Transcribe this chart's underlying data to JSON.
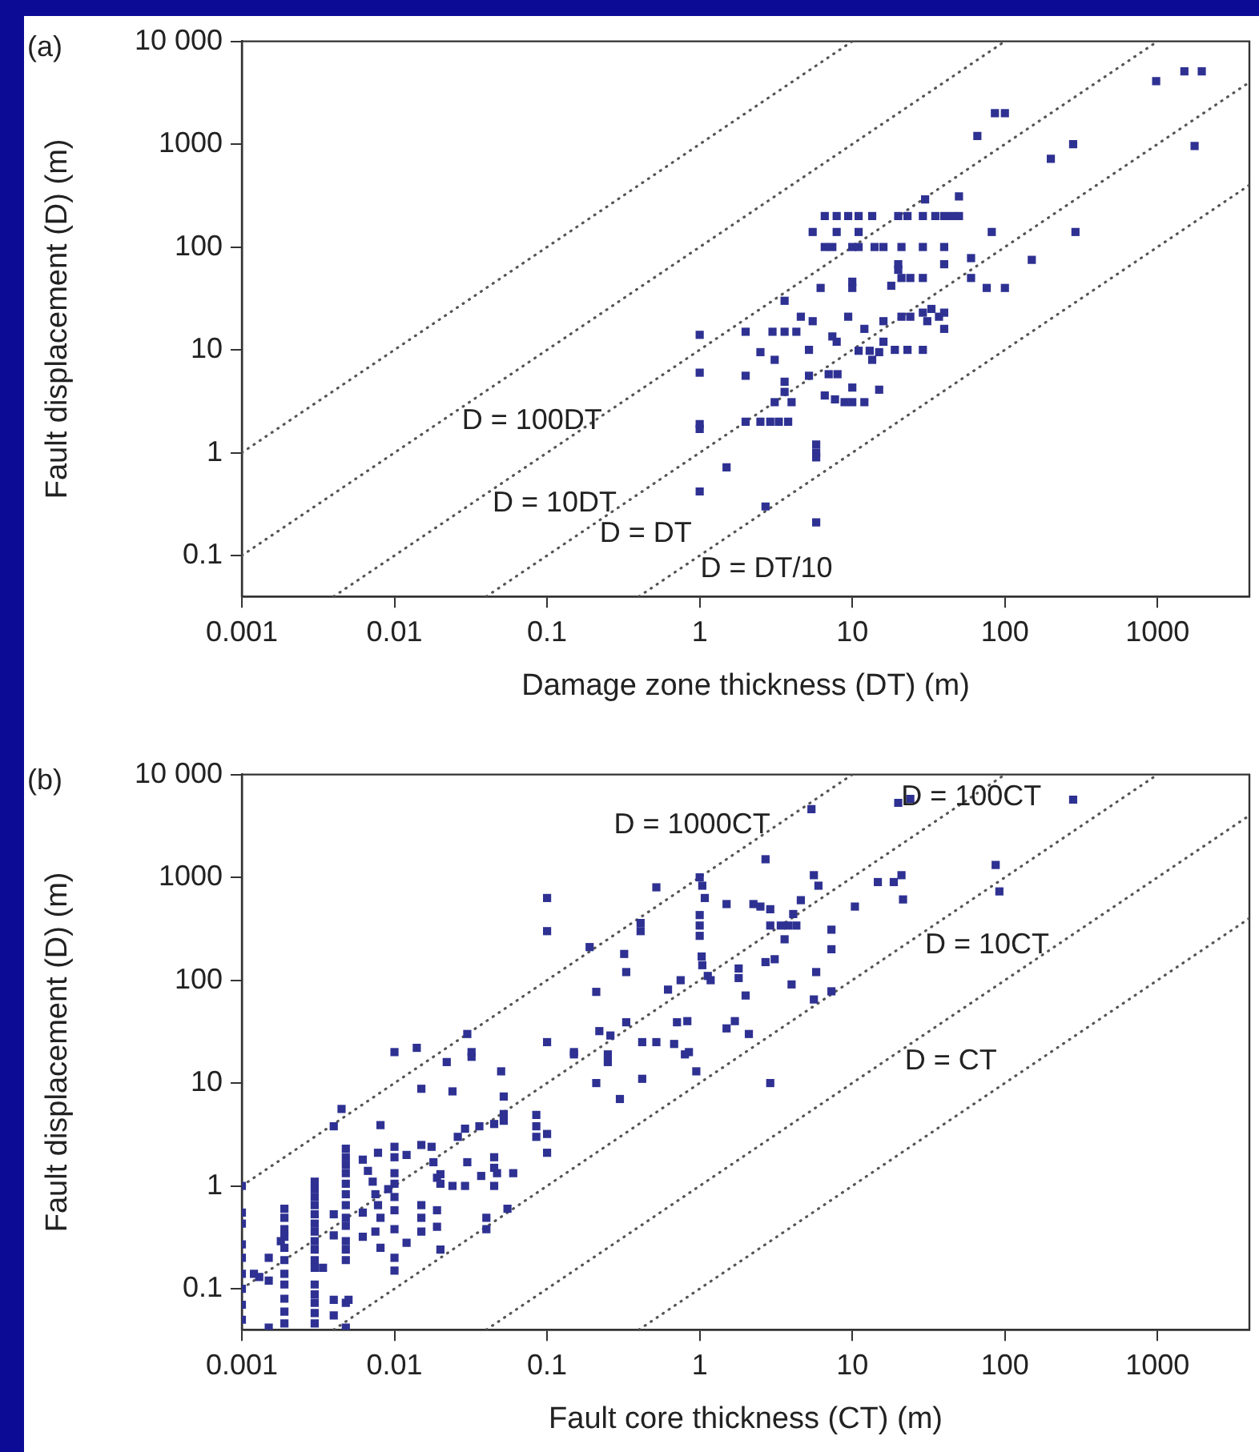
{
  "chart_data": [
    {
      "type": "scatter",
      "xlabel": "Damage zone thickness (DT) (m)",
      "ylabel": "Fault displacement (D) (m)",
      "annotations": [
        "(a)"
      ],
      "log": "xy",
      "marker": "square",
      "xlim": [
        0.001,
        4000
      ],
      "ylim": [
        0.04,
        10000
      ],
      "xticks": [
        0.001,
        0.01,
        0.1,
        1,
        10,
        100,
        1000
      ],
      "yticks": [
        0.1,
        1,
        10,
        100,
        1000,
        {
          "value": 10000,
          "label": "10 000"
        }
      ],
      "series": [
        {
          "type": "scatter",
          "color": "#2e3192",
          "x": [
            1,
            1,
            1,
            1,
            1,
            1.5,
            2,
            2,
            2,
            2.5,
            2.9,
            3.3,
            3.8,
            2.5,
            2.7,
            3,
            3.6,
            4.3,
            3.6,
            3.1,
            3.6,
            3.6,
            3.1,
            4,
            4.6,
            5.2,
            5.2,
            5.8,
            5.8,
            5.8,
            5.8,
            5.5,
            6.2,
            6.6,
            7.9,
            9.4,
            11,
            13.5,
            5.5,
            7.9,
            11,
            6.6,
            7.4,
            10,
            11,
            14,
            16,
            10,
            10,
            7,
            8,
            6.6,
            7.7,
            8.9,
            9.4,
            7.4,
            7.9,
            10,
            12,
            10,
            12,
            15,
            11,
            13,
            13.5,
            15,
            16,
            16,
            18,
            20,
            20,
            20,
            23,
            29,
            35,
            40,
            45,
            50,
            21,
            29,
            40,
            21,
            24,
            29,
            40,
            30,
            50,
            21,
            24,
            29,
            33,
            37,
            40,
            40,
            31,
            19,
            23,
            29,
            60,
            60,
            76,
            100,
            82,
            66,
            86,
            100,
            150,
            200,
            280,
            290,
            980,
            1500,
            1950,
            1750
          ],
          "values": [
            14,
            6,
            1.9,
            1.7,
            0.42,
            0.72,
            15,
            5.6,
            2,
            2,
            2,
            2,
            2,
            9.5,
            0.3,
            15,
            15,
            15,
            30,
            8,
            4.9,
            3.9,
            3.1,
            3.1,
            21,
            10,
            5.6,
            1,
            0.9,
            1.2,
            0.21,
            19,
            40,
            200,
            200,
            200,
            200,
            200,
            140,
            140,
            140,
            100,
            100,
            100,
            100,
            100,
            100,
            46,
            40,
            5.8,
            5.8,
            3.6,
            3.3,
            3.1,
            21,
            13.5,
            12,
            3.1,
            3.1,
            4.3,
            16,
            4.1,
            9.8,
            9.8,
            8,
            9.5,
            12,
            19,
            42,
            68,
            60,
            200,
            200,
            200,
            200,
            200,
            200,
            200,
            100,
            100,
            100,
            50,
            50,
            50,
            68,
            290,
            310,
            21,
            21,
            23,
            25,
            21,
            23,
            16,
            19,
            10,
            10,
            10,
            78,
            50,
            40,
            40,
            140,
            1200,
            2000,
            2000,
            75,
            720,
            1000,
            140,
            4100,
            5100,
            5100,
            960
          ]
        },
        {
          "type": "line",
          "color": "#555555",
          "line_style": "dotted",
          "marker": "none",
          "x": [
            0.001,
            10
          ],
          "values": [
            1,
            10000
          ]
        },
        {
          "type": "line",
          "name": "D = 100DT",
          "color": "#555555",
          "line_style": "dotted",
          "marker": "none",
          "x": [
            0.001,
            100
          ],
          "values": [
            0.1,
            10000
          ]
        },
        {
          "type": "line",
          "name": "D = 10DT",
          "color": "#555555",
          "line_style": "dotted",
          "marker": "none",
          "x": [
            0.004,
            1000
          ],
          "values": [
            0.04,
            10000
          ]
        },
        {
          "type": "line",
          "name": "D = DT",
          "color": "#555555",
          "line_style": "dotted",
          "marker": "none",
          "x": [
            0.04,
            4000
          ],
          "values": [
            0.04,
            4000
          ]
        },
        {
          "type": "line",
          "name": "D = DT/10",
          "color": "#555555",
          "line_style": "dotted",
          "marker": "none",
          "x": [
            0.4,
            4000
          ],
          "values": [
            0.04,
            400
          ]
        }
      ]
    },
    {
      "type": "scatter",
      "xlabel": "Fault core thickness (CT) (m)",
      "ylabel": "Fault displacement (D) (m)",
      "annotations": [
        "(b)"
      ],
      "log": "xy",
      "marker": "square",
      "xlim": [
        0.001,
        4000
      ],
      "ylim": [
        0.04,
        10000
      ],
      "xticks": [
        0.001,
        0.01,
        0.1,
        1,
        10,
        100,
        1000
      ],
      "yticks": [
        0.1,
        1,
        10,
        100,
        1000,
        {
          "value": 10000,
          "label": "10 000"
        }
      ],
      "series": [
        {
          "type": "scatter",
          "color": "#2e3192",
          "x": [
            0.001,
            0.001,
            0.001,
            0.001,
            0.001,
            0.001,
            0.001,
            0.001,
            0.001,
            0.0012,
            0.0013,
            0.0015,
            0.0015,
            0.0015,
            0.0019,
            0.0019,
            0.0019,
            0.0019,
            0.0019,
            0.0019,
            0.0019,
            0.0019,
            0.0019,
            0.0019,
            0.0019,
            0.0018,
            0.003,
            0.003,
            0.003,
            0.003,
            0.003,
            0.003,
            0.003,
            0.003,
            0.003,
            0.003,
            0.003,
            0.003,
            0.003,
            0.003,
            0.003,
            0.003,
            0.0034,
            0.004,
            0.004,
            0.004,
            0.004,
            0.0045,
            0.004,
            0.0048,
            0.0048,
            0.0048,
            0.0048,
            0.0048,
            0.0048,
            0.0048,
            0.0048,
            0.0048,
            0.0048,
            0.0048,
            0.0048,
            0.0048,
            0.0048,
            0.005,
            0.0062,
            0.0067,
            0.0072,
            0.0075,
            0.0078,
            0.0081,
            0.0075,
            0.0081,
            0.0062,
            0.0062,
            0.0078,
            0.0081,
            0.01,
            0.01,
            0.01,
            0.01,
            0.01,
            0.01,
            0.01,
            0.01,
            0.01,
            0.012,
            0.012,
            0.0091,
            0.01,
            0.014,
            0.015,
            0.015,
            0.015,
            0.015,
            0.015,
            0.0175,
            0.018,
            0.019,
            0.019,
            0.019,
            0.02,
            0.022,
            0.024,
            0.026,
            0.029,
            0.036,
            0.024,
            0.029,
            0.02,
            0.02,
            0.03,
            0.032,
            0.032,
            0.03,
            0.037,
            0.047,
            0.04,
            0.04,
            0.045,
            0.05,
            0.052,
            0.052,
            0.052,
            0.045,
            0.045,
            0.045,
            0.055,
            0.06,
            0.1,
            0.1,
            0.1,
            0.1,
            0.1,
            0.085,
            0.085,
            0.085,
            0.19,
            0.15,
            0.15,
            0.21,
            0.21,
            0.22,
            0.26,
            0.25,
            0.25,
            0.3,
            0.32,
            0.33,
            0.33,
            0.41,
            0.41,
            0.42,
            0.42,
            0.52,
            0.52,
            0.62,
            0.68,
            0.71,
            0.83,
            0.75,
            0.8,
            0.85,
            0.95,
            1,
            1.04,
            1.08,
            1,
            1,
            1,
            1.03,
            1.04,
            1.13,
            1.18,
            1.5,
            1.8,
            1.8,
            1.5,
            1.7,
            2,
            2.1,
            2.25,
            2.5,
            2.9,
            2.7,
            2.9,
            2.7,
            3.1,
            2.9,
            3.4,
            3.6,
            4.1,
            4.6,
            3.8,
            4.3,
            4,
            5.6,
            6,
            5.6,
            5.8,
            5.4,
            7.3,
            7.3,
            7.3,
            10.4,
            14.7,
            18.7,
            21,
            21.5,
            20,
            24,
            280,
            87,
            92
          ],
          "values": [
            1,
            0.55,
            0.43,
            0.27,
            0.2,
            0.14,
            0.1,
            0.07,
            0.05,
            0.14,
            0.13,
            0.12,
            0.2,
            0.042,
            0.6,
            0.49,
            0.38,
            0.32,
            0.25,
            0.19,
            0.14,
            0.11,
            0.08,
            0.06,
            0.046,
            0.29,
            1.1,
            0.93,
            0.78,
            0.65,
            0.53,
            0.43,
            0.36,
            0.29,
            0.24,
            0.19,
            0.16,
            0.11,
            0.088,
            0.073,
            0.058,
            0.046,
            0.16,
            0.53,
            0.33,
            0.078,
            0.055,
            5.6,
            3.8,
            2.3,
            1.9,
            1.6,
            1.33,
            1.05,
            0.83,
            0.65,
            0.49,
            0.41,
            0.29,
            0.24,
            0.19,
            0.073,
            0.042,
            0.078,
            1.8,
            1.4,
            1.1,
            0.83,
            0.65,
            0.49,
            0.36,
            0.25,
            0.55,
            0.32,
            2.1,
            3.9,
            2.4,
            1.9,
            1.33,
            1.05,
            0.78,
            0.58,
            0.38,
            0.2,
            0.15,
            2,
            0.28,
            0.93,
            20,
            22,
            2.5,
            0.65,
            0.49,
            0.36,
            8.8,
            2.4,
            1.7,
            1.2,
            0.58,
            0.4,
            0.24,
            16,
            8.3,
            3,
            3.6,
            3.8,
            1,
            1,
            1.3,
            1.05,
            30,
            20,
            18,
            1.7,
            1.25,
            1.33,
            0.49,
            0.38,
            1,
            13,
            7.4,
            5,
            4.3,
            4,
            1.9,
            1.5,
            0.6,
            1.33,
            630,
            300,
            25,
            2.1,
            3.2,
            4.9,
            3.8,
            3,
            210,
            20,
            19,
            77,
            10,
            32,
            29,
            19,
            16,
            7,
            180,
            120,
            39,
            360,
            300,
            25,
            11,
            800,
            25,
            81,
            24,
            39,
            40,
            100,
            19,
            20,
            13,
            1000,
            830,
            630,
            430,
            340,
            270,
            170,
            140,
            110,
            100,
            550,
            130,
            105,
            34,
            40,
            71,
            30,
            550,
            520,
            490,
            1500,
            10,
            150,
            160,
            340,
            340,
            250,
            440,
            600,
            340,
            340,
            91,
            1050,
            830,
            65,
            120,
            4600,
            310,
            200,
            78,
            520,
            900,
            900,
            1050,
            610,
            5300,
            5800,
            5700,
            1320,
            730
          ]
        },
        {
          "type": "line",
          "name": "D = 1000CT",
          "color": "#555555",
          "line_style": "dotted",
          "marker": "none",
          "x": [
            0.001,
            10
          ],
          "values": [
            1,
            10000
          ]
        },
        {
          "type": "line",
          "name": "D = 100CT",
          "color": "#555555",
          "line_style": "dotted",
          "marker": "none",
          "x": [
            0.001,
            100
          ],
          "values": [
            0.1,
            10000
          ]
        },
        {
          "type": "line",
          "name": "D = 10CT",
          "color": "#555555",
          "line_style": "dotted",
          "marker": "none",
          "x": [
            0.004,
            1000
          ],
          "values": [
            0.04,
            10000
          ]
        },
        {
          "type": "line",
          "name": "D = CT",
          "color": "#555555",
          "line_style": "dotted",
          "marker": "none",
          "x": [
            0.04,
            4000
          ],
          "values": [
            0.04,
            4000
          ]
        },
        {
          "type": "line",
          "color": "#555555",
          "line_style": "dotted",
          "marker": "none",
          "x": [
            0.4,
            4000
          ],
          "values": [
            0.04,
            400
          ]
        }
      ]
    }
  ]
}
